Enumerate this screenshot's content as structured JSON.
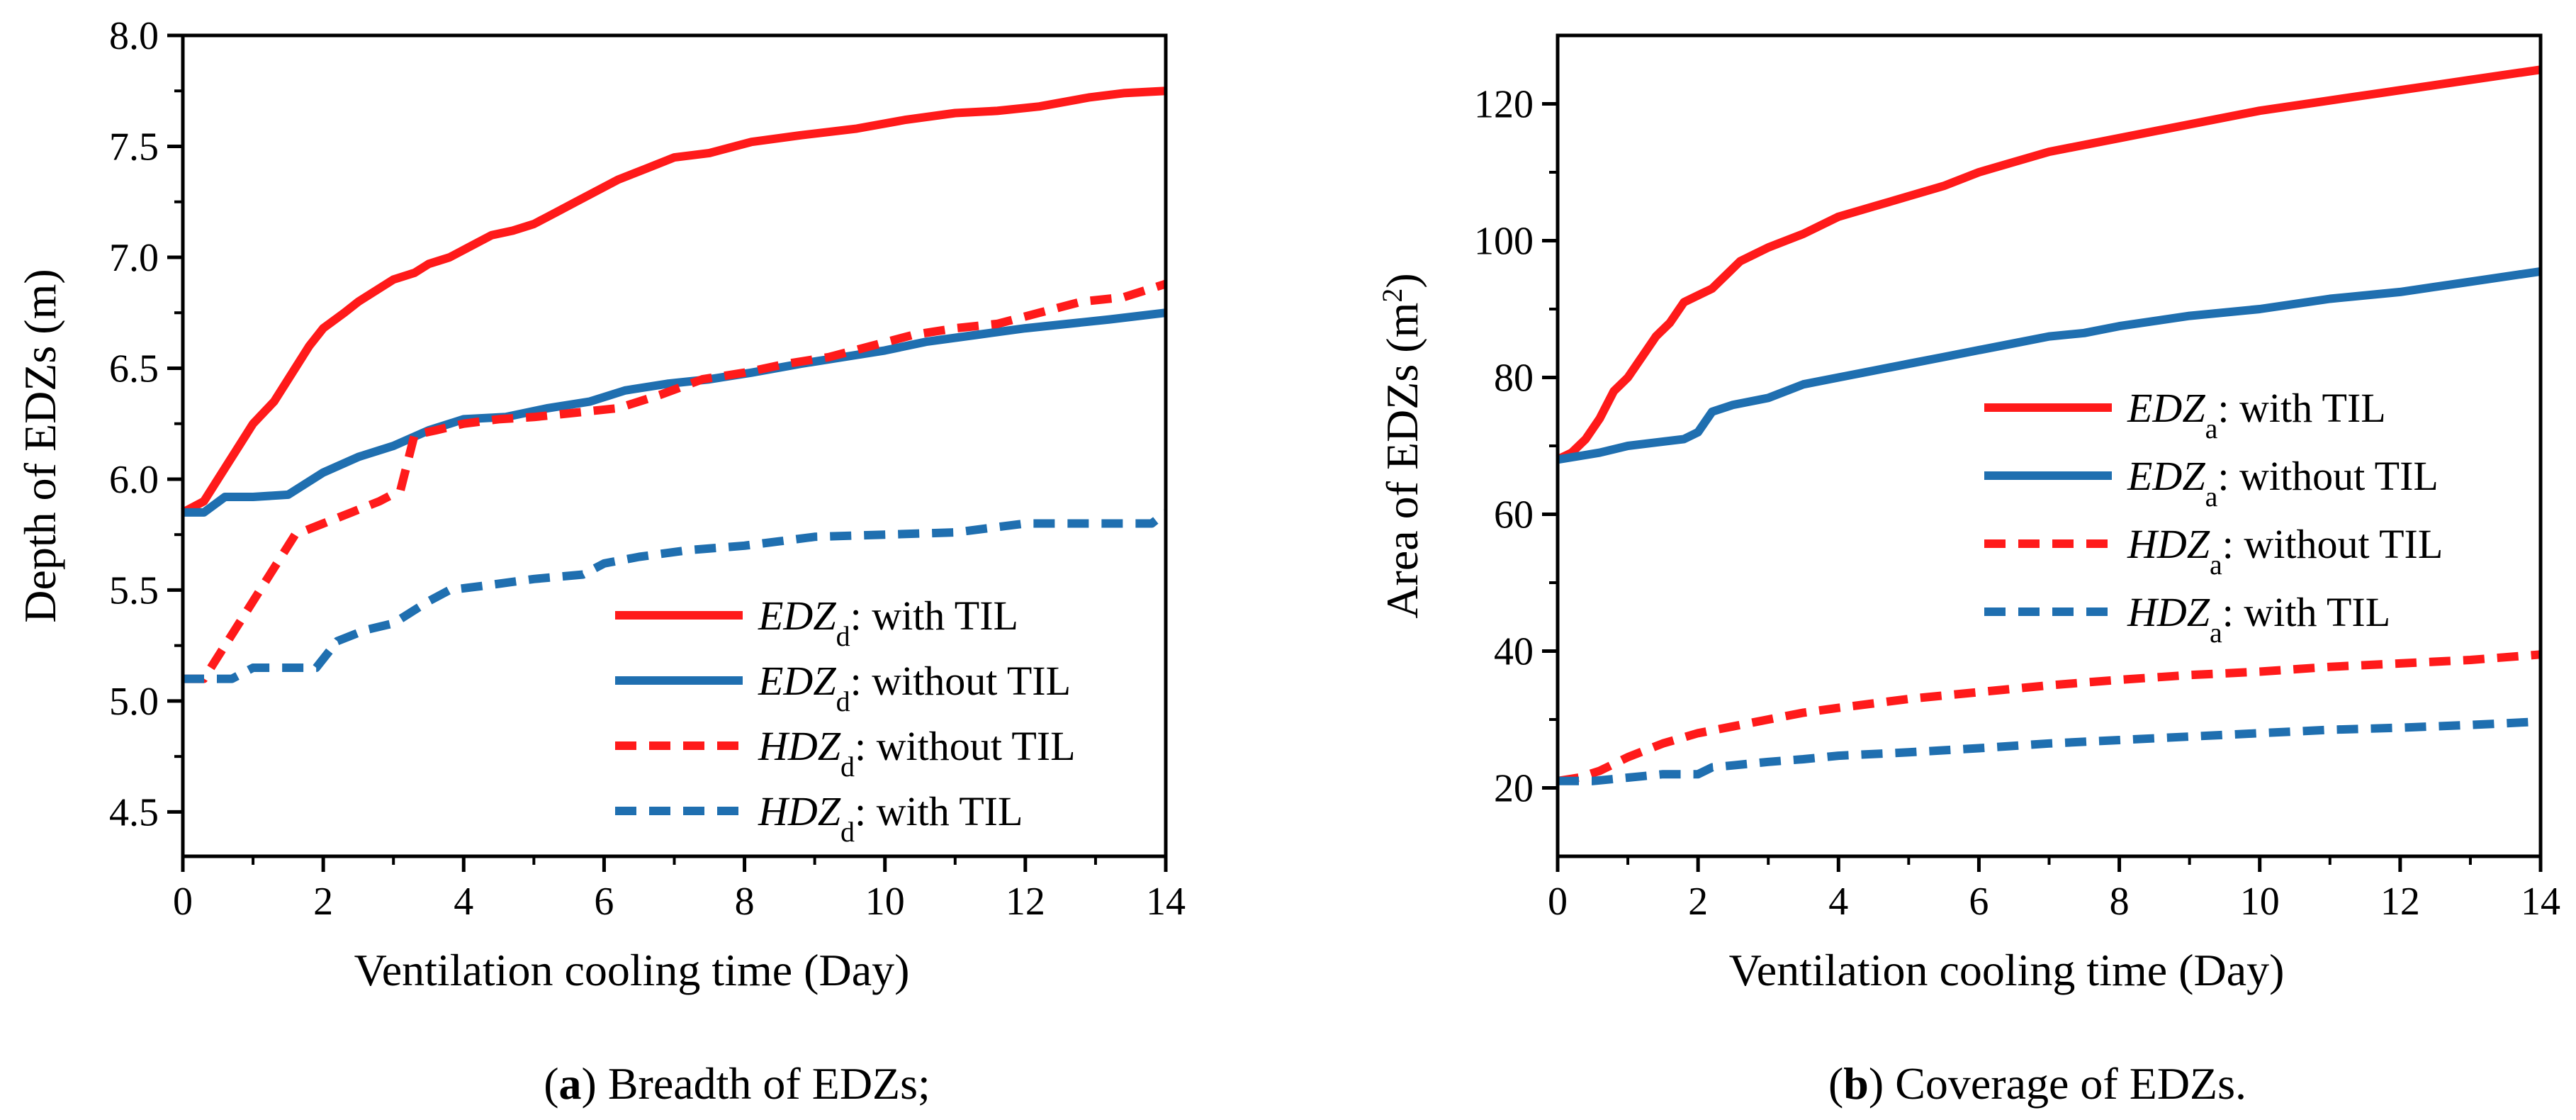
{
  "chart_data": [
    {
      "type": "line",
      "title": "",
      "xlabel": "Ventilation cooling time  (Day)",
      "ylabel": "Depth of EDZs (m)",
      "xlim": [
        0,
        14
      ],
      "ylim": [
        4.3,
        8.0
      ],
      "xticks": [
        0,
        2,
        4,
        6,
        8,
        10,
        12,
        14
      ],
      "xtick_labels": [
        "0",
        "2",
        "4",
        "6",
        "8",
        "10",
        "12",
        "14"
      ],
      "yticks": [
        4.5,
        5.0,
        5.5,
        6.0,
        6.5,
        7.0,
        7.5,
        8.0
      ],
      "ytick_labels": [
        "4.5",
        "5.0",
        "5.5",
        "6.0",
        "6.5",
        "7.0",
        "7.5",
        "8.0"
      ],
      "grid": false,
      "legend_position": "bottom-right",
      "caption": {
        "label": "a",
        "text": ") Breadth of EDZs;"
      },
      "series": [
        {
          "name": "EDZd: with TIL",
          "legend_italic": "EDZ",
          "legend_sub": "d",
          "legend_rest": ": with TIL",
          "color": "#ff1a1a",
          "dash": "solid",
          "x": [
            0,
            0.3,
            0.5,
            0.8,
            1.0,
            1.3,
            1.6,
            1.8,
            2.0,
            2.3,
            2.5,
            2.8,
            3.0,
            3.3,
            3.5,
            3.8,
            4.1,
            4.4,
            4.7,
            5.0,
            5.3,
            5.6,
            5.9,
            6.2,
            6.6,
            7.0,
            7.5,
            8.1,
            8.8,
            9.6,
            10.3,
            11.0,
            11.6,
            12.2,
            12.9,
            13.4,
            14.0
          ],
          "y": [
            5.85,
            5.9,
            6.0,
            6.15,
            6.25,
            6.35,
            6.5,
            6.6,
            6.68,
            6.75,
            6.8,
            6.86,
            6.9,
            6.93,
            6.97,
            7.0,
            7.05,
            7.1,
            7.12,
            7.15,
            7.2,
            7.25,
            7.3,
            7.35,
            7.4,
            7.45,
            7.47,
            7.52,
            7.55,
            7.58,
            7.62,
            7.65,
            7.66,
            7.68,
            7.72,
            7.74,
            7.75
          ]
        },
        {
          "name": "EDZd: without TIL",
          "legend_italic": "EDZ",
          "legend_sub": "d",
          "legend_rest": ": without TIL",
          "color": "#1f6fb0",
          "dash": "solid",
          "x": [
            0,
            0.3,
            0.6,
            1.0,
            1.5,
            2.0,
            2.5,
            3.0,
            3.5,
            4.0,
            4.6,
            5.2,
            5.8,
            6.3,
            6.9,
            7.5,
            8.1,
            8.8,
            9.4,
            10.0,
            10.6,
            11.3,
            12.0,
            12.6,
            13.2,
            14.0
          ],
          "y": [
            5.85,
            5.85,
            5.92,
            5.92,
            5.93,
            6.03,
            6.1,
            6.15,
            6.22,
            6.27,
            6.28,
            6.32,
            6.35,
            6.4,
            6.43,
            6.45,
            6.48,
            6.52,
            6.55,
            6.58,
            6.62,
            6.65,
            6.68,
            6.7,
            6.72,
            6.75
          ]
        },
        {
          "name": "HDZd: without TIL",
          "legend_italic": "HDZ",
          "legend_sub": "d",
          "legend_rest": ": without TIL",
          "color": "#ff1a1a",
          "dash": "dashed",
          "x": [
            0,
            0.3,
            0.5,
            0.8,
            1.0,
            1.3,
            1.6,
            2.0,
            2.4,
            2.8,
            3.1,
            3.3,
            3.6,
            4.0,
            4.5,
            5.0,
            5.6,
            6.2,
            6.8,
            7.4,
            8.0,
            8.6,
            9.2,
            9.8,
            10.4,
            11.0,
            11.6,
            12.2,
            12.8,
            13.4,
            14.0
          ],
          "y": [
            5.1,
            5.1,
            5.2,
            5.35,
            5.45,
            5.6,
            5.75,
            5.8,
            5.85,
            5.9,
            5.95,
            6.2,
            6.22,
            6.25,
            6.27,
            6.28,
            6.3,
            6.32,
            6.38,
            6.45,
            6.48,
            6.52,
            6.55,
            6.6,
            6.65,
            6.68,
            6.7,
            6.75,
            6.8,
            6.82,
            6.88
          ]
        },
        {
          "name": "HDZd: with TIL",
          "legend_italic": "HDZ",
          "legend_sub": "d",
          "legend_rest": ": with TIL",
          "color": "#1f6fb0",
          "dash": "dashed",
          "x": [
            0,
            0.4,
            0.7,
            1.0,
            1.5,
            1.9,
            2.2,
            2.6,
            3.0,
            3.5,
            3.8,
            4.3,
            5.0,
            5.7,
            6.0,
            6.5,
            7.2,
            8.0,
            8.5,
            9.0,
            10.0,
            11.0,
            11.5,
            12.0,
            13.0,
            13.8,
            14.0
          ],
          "y": [
            5.1,
            5.1,
            5.1,
            5.15,
            5.15,
            5.15,
            5.27,
            5.32,
            5.35,
            5.45,
            5.5,
            5.52,
            5.55,
            5.57,
            5.62,
            5.65,
            5.68,
            5.7,
            5.72,
            5.74,
            5.75,
            5.76,
            5.78,
            5.8,
            5.8,
            5.8,
            5.85
          ]
        }
      ]
    },
    {
      "type": "line",
      "title": "",
      "xlabel": "Ventilation cooling time  (Day)",
      "ylabel": "Area of EDZs (m",
      "ylabel_sup": "2",
      "ylabel_close": ")",
      "xlim": [
        0,
        14
      ],
      "ylim": [
        10,
        130
      ],
      "xticks": [
        0,
        2,
        4,
        6,
        8,
        10,
        12,
        14
      ],
      "xtick_labels": [
        "0",
        "2",
        "4",
        "6",
        "8",
        "10",
        "12",
        "14"
      ],
      "yticks": [
        20,
        40,
        60,
        80,
        100,
        120
      ],
      "ytick_labels": [
        "20",
        "40",
        "60",
        "80",
        "100",
        "120"
      ],
      "grid": false,
      "legend_position": "center-right",
      "caption": {
        "label": "b",
        "text": ") Coverage of EDZs."
      },
      "series": [
        {
          "name": "EDZa: with TIL",
          "legend_italic": "EDZ",
          "legend_sub": "a",
          "legend_rest": ": with TIL",
          "color": "#ff1a1a",
          "dash": "solid",
          "x": [
            0,
            0.2,
            0.4,
            0.6,
            0.8,
            1.0,
            1.2,
            1.4,
            1.6,
            1.8,
            2.0,
            2.2,
            2.4,
            2.6,
            2.8,
            3.0,
            3.5,
            4.0,
            4.5,
            5.0,
            5.5,
            6.0,
            6.5,
            7.0,
            8.0,
            9.0,
            10.0,
            11.0,
            12.0,
            13.0,
            14.0
          ],
          "y": [
            68,
            69,
            71,
            74,
            78,
            80,
            83,
            86,
            88,
            91,
            92,
            93,
            95,
            97,
            98,
            99,
            101,
            103.5,
            105,
            106.5,
            108,
            110,
            111.5,
            113,
            115,
            117,
            119,
            120.5,
            122,
            123.5,
            125
          ]
        },
        {
          "name": "EDZa: without TIL",
          "legend_italic": "EDZ",
          "legend_sub": "a",
          "legend_rest": ": without TIL",
          "color": "#1f6fb0",
          "dash": "solid",
          "x": [
            0,
            0.3,
            0.6,
            1.0,
            1.4,
            1.8,
            2.0,
            2.2,
            2.5,
            3.0,
            3.5,
            4.0,
            4.5,
            5.0,
            5.5,
            6.0,
            6.5,
            7.0,
            7.5,
            8.0,
            9.0,
            10.0,
            11.0,
            12.0,
            13.0,
            14.0
          ],
          "y": [
            68,
            68.5,
            69,
            70,
            70.5,
            71,
            72,
            75,
            76,
            77,
            79,
            80,
            81,
            82,
            83,
            84,
            85,
            86,
            86.5,
            87.5,
            89,
            90,
            91.5,
            92.5,
            94,
            95.5
          ]
        },
        {
          "name": "HDZa: without TIL",
          "legend_italic": "HDZ",
          "legend_sub": "a",
          "legend_rest": ": without TIL",
          "color": "#ff1a1a",
          "dash": "dashed",
          "x": [
            0,
            0.3,
            0.6,
            1.0,
            1.5,
            2.0,
            2.5,
            3.0,
            3.5,
            4.0,
            5.0,
            6.0,
            7.0,
            8.0,
            9.0,
            10.0,
            11.0,
            12.0,
            13.0,
            14.0
          ],
          "y": [
            21,
            21.5,
            22.5,
            24.5,
            26.5,
            28,
            29,
            30,
            31,
            31.7,
            33,
            34,
            35,
            35.8,
            36.5,
            37,
            37.7,
            38.2,
            38.7,
            39.5
          ]
        },
        {
          "name": "HDZa: with TIL",
          "legend_italic": "HDZ",
          "legend_sub": "a",
          "legend_rest": ": with TIL",
          "color": "#1f6fb0",
          "dash": "dashed",
          "x": [
            0,
            0.5,
            1.0,
            1.5,
            2.0,
            2.2,
            2.5,
            3.0,
            3.5,
            4.0,
            5.0,
            6.0,
            7.0,
            8.0,
            9.0,
            10.0,
            11.0,
            12.0,
            13.0,
            14.0
          ],
          "y": [
            21,
            21,
            21.5,
            22,
            22,
            23,
            23.3,
            23.8,
            24.2,
            24.7,
            25.2,
            25.8,
            26.5,
            27,
            27.5,
            28,
            28.5,
            28.8,
            29.2,
            29.7
          ]
        }
      ]
    }
  ]
}
